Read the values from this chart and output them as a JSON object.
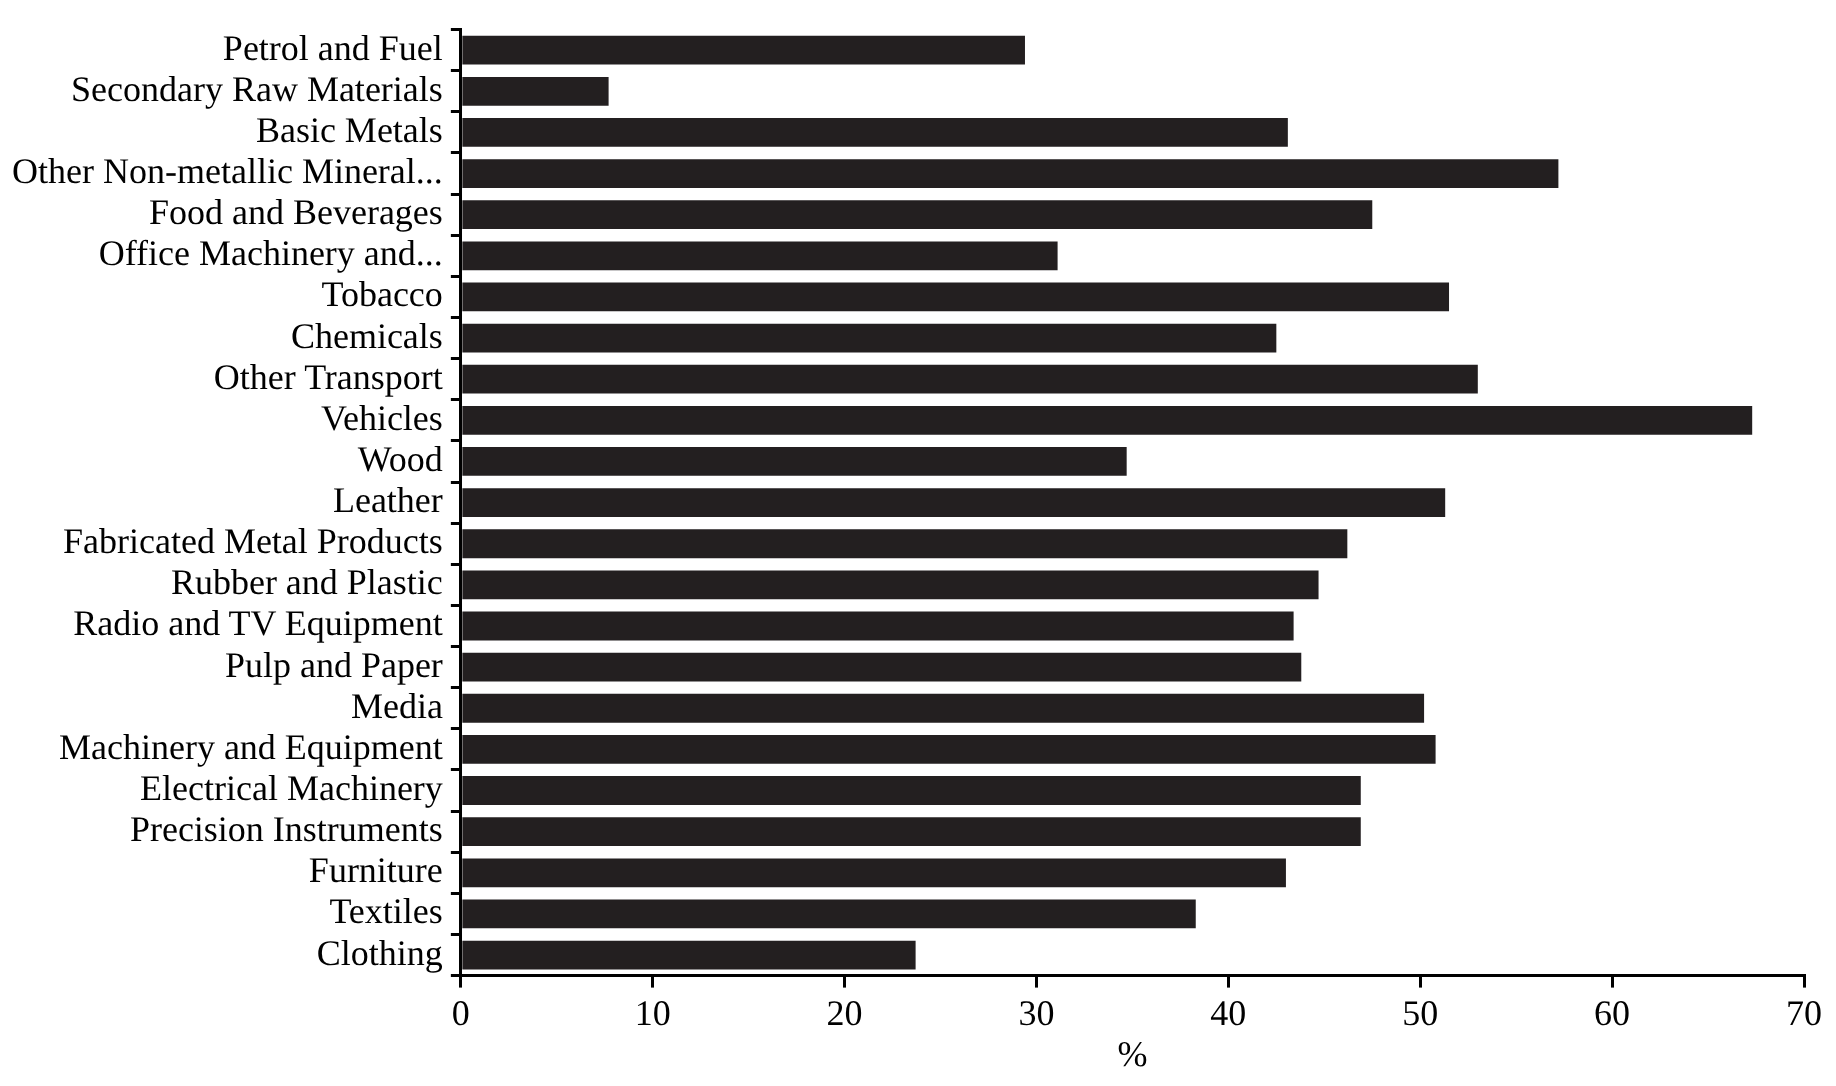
{
  "chart_data": {
    "type": "bar",
    "orientation": "horizontal",
    "xlabel": "%",
    "categories": [
      "Petrol and Fuel",
      "Secondary Raw Materials",
      "Basic Metals",
      "Other Non-metallic Mineral...",
      "Food and Beverages",
      "Office Machinery and...",
      "Tobacco",
      "Chemicals",
      "Other Transport",
      "Vehicles",
      "Wood",
      "Leather",
      "Fabricated Metal Products",
      "Rubber and Plastic",
      "Radio and TV Equipment",
      "Pulp and Paper",
      "Media",
      "Machinery and Equipment",
      "Electrical Machinery",
      "Precision Instruments",
      "Furniture",
      "Textiles",
      "Clothing"
    ],
    "values": [
      29.4,
      7.7,
      43.1,
      57.2,
      47.5,
      31.1,
      51.5,
      42.5,
      53.0,
      67.3,
      34.7,
      51.3,
      46.2,
      44.7,
      43.4,
      43.8,
      50.2,
      50.8,
      46.9,
      46.9,
      43.0,
      38.3,
      23.7
    ],
    "color": "#231f20",
    "xlim": [
      0,
      70
    ],
    "xticks": [
      0,
      10,
      20,
      30,
      40,
      50,
      60,
      70
    ],
    "grid": false,
    "legend": false
  }
}
